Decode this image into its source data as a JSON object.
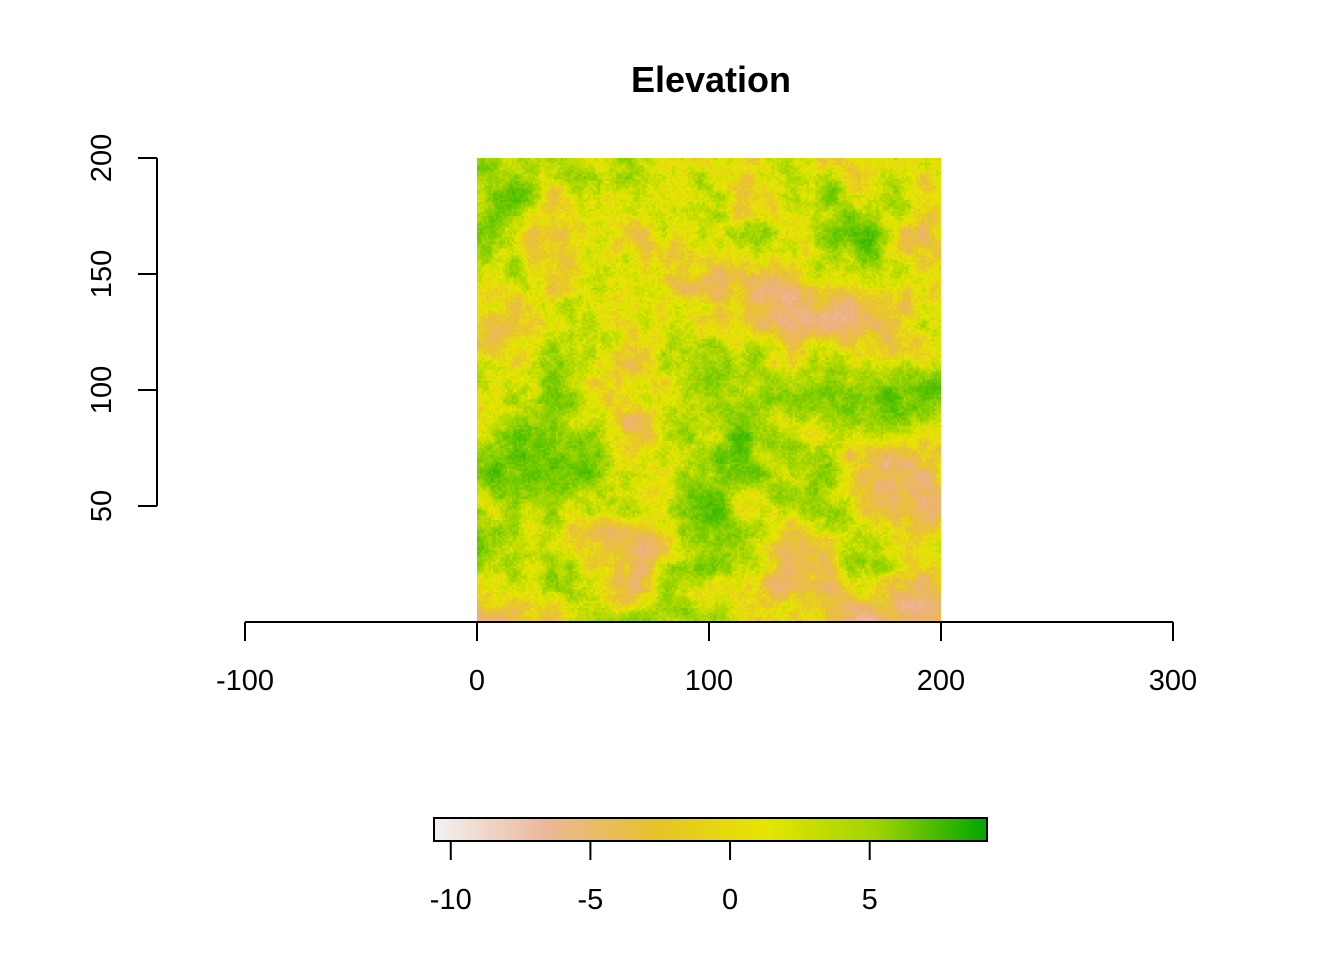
{
  "chart_data": {
    "type": "heatmap",
    "title": "Elevation",
    "xlabel": "",
    "ylabel": "",
    "x_ticks": [
      -100,
      0,
      100,
      200,
      300
    ],
    "x_tick_labels": [
      "-100",
      "0",
      "100",
      "200",
      "300"
    ],
    "y_ticks": [
      50,
      100,
      150,
      200
    ],
    "y_tick_labels": [
      "50",
      "100",
      "150",
      "200"
    ],
    "xlim": [
      -100,
      300
    ],
    "ylim": [
      0,
      200
    ],
    "raster_extent": {
      "x": [
        0,
        200
      ],
      "y": [
        0,
        200
      ]
    },
    "raster_resolution": [
      200,
      200
    ],
    "grid": false,
    "legend": {
      "placement": "bottom",
      "range": [
        -10.6,
        9.2
      ],
      "ticks": [
        -10,
        -5,
        0,
        5
      ],
      "tick_labels": [
        "-10",
        "-5",
        "0",
        "5"
      ],
      "colors": [
        "#f2f2f2",
        "#ecb79b",
        "#e6c228",
        "#e6e600",
        "#9fd300",
        "#00a600"
      ]
    },
    "colors": {
      "low": "#f2f2f2",
      "mid_low": "#ecb79b",
      "mid": "#e6e600",
      "high": "#00a600"
    }
  }
}
